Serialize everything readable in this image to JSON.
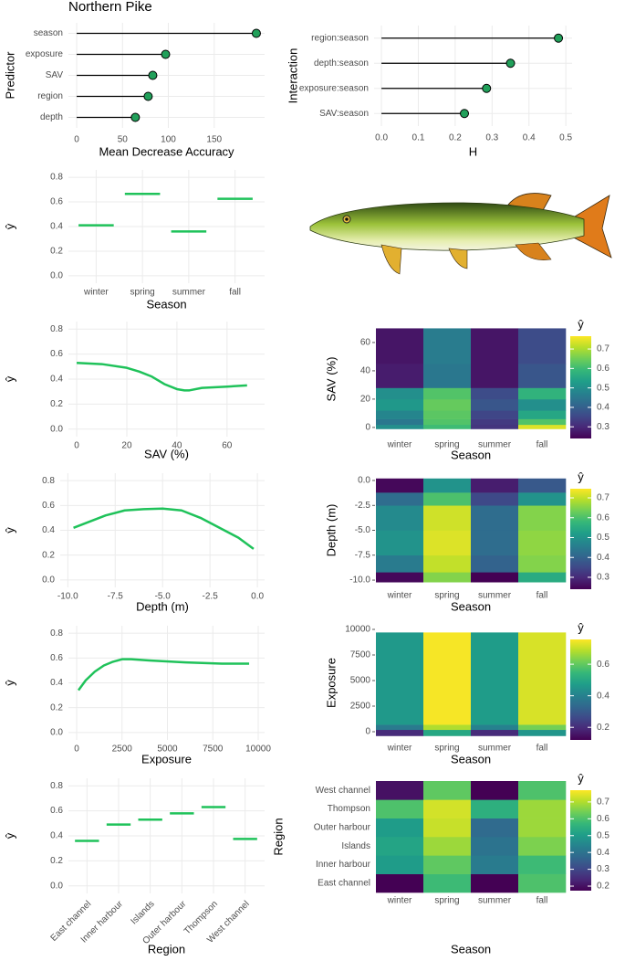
{
  "chart_data": [
    {
      "type": "lollipop",
      "title": "Northern Pike",
      "ylabel": "Predictor",
      "xlabel": "Mean Decrease Accuracy",
      "categories": [
        "season",
        "exposure",
        "SAV",
        "region",
        "depth"
      ],
      "values": [
        196,
        97,
        83,
        78,
        64
      ],
      "color": "#21a05a",
      "xlim": [
        -9,
        205
      ],
      "xticks": [
        0,
        50,
        100,
        150
      ]
    },
    {
      "type": "lollipop",
      "ylabel": "Interaction",
      "xlabel": "H",
      "categories": [
        "region:season",
        "depth:season",
        "exposure:season",
        "SAV:season"
      ],
      "values": [
        0.48,
        0.35,
        0.285,
        0.225
      ],
      "color": "#21a05a",
      "xlim": [
        -0.02,
        0.517
      ],
      "xticks": [
        {
          "value": 0,
          "label": "0.0"
        },
        0.1,
        0.2,
        0.3,
        0.4,
        0.5
      ]
    },
    {
      "type": "segment",
      "ylabel": "ŷ",
      "xlabel": "Season",
      "categories": [
        "winter",
        "spring",
        "summer",
        "fall"
      ],
      "values": [
        0.41,
        0.665,
        0.36,
        0.625
      ],
      "color": "#1fc25a",
      "ylim": [
        -0.06,
        0.86
      ],
      "yticks": [
        {
          "value": 0,
          "label": "0.0"
        },
        0.2,
        0.4,
        0.6,
        0.8
      ]
    },
    {
      "type": "line",
      "ylabel": "ŷ",
      "xlabel": "SAV (%)",
      "x": [
        0,
        10,
        20,
        25,
        30,
        35,
        40,
        43,
        45,
        50,
        60,
        68
      ],
      "values": [
        0.53,
        0.52,
        0.49,
        0.46,
        0.42,
        0.36,
        0.32,
        0.31,
        0.31,
        0.33,
        0.34,
        0.35
      ],
      "color": "#1fc25a",
      "xlim": [
        -3.3,
        75
      ],
      "xticks": [
        0,
        20,
        40,
        60
      ],
      "ylim": [
        -0.06,
        0.86
      ],
      "yticks": [
        {
          "value": 0,
          "label": "0.0"
        },
        0.2,
        0.4,
        0.6,
        0.8
      ]
    },
    {
      "type": "heatmap",
      "ylabel": "SAV (%)",
      "xlabel": "Season",
      "categories": [
        "winter",
        "spring",
        "summer",
        "fall"
      ],
      "ybins": [
        -1,
        2,
        6,
        12,
        20,
        28,
        45,
        70
      ],
      "values": [
        [
          0.5,
          0.6,
          0.32,
          0.74
        ],
        [
          0.45,
          0.62,
          0.33,
          0.62
        ],
        [
          0.48,
          0.63,
          0.35,
          0.55
        ],
        [
          0.52,
          0.64,
          0.38,
          0.5
        ],
        [
          0.5,
          0.62,
          0.36,
          0.58
        ],
        [
          0.28,
          0.45,
          0.27,
          0.38
        ],
        [
          0.27,
          0.46,
          0.27,
          0.36
        ]
      ],
      "ylim": [
        -6.5,
        74.8
      ],
      "yticks": [
        0,
        20,
        40,
        60
      ],
      "clim": [
        0.24,
        0.766
      ],
      "colorbar_title": "ŷ",
      "colorbar_ticks": [
        0.3,
        0.4,
        0.5,
        0.6,
        0.7
      ]
    },
    {
      "type": "line",
      "ylabel": "ŷ",
      "xlabel": "Depth (m)",
      "x": [
        -9.7,
        -8,
        -7,
        -6,
        -5,
        -4,
        -3,
        -2,
        -1,
        -0.2
      ],
      "values": [
        0.42,
        0.52,
        0.56,
        0.57,
        0.575,
        0.56,
        0.5,
        0.42,
        0.34,
        0.25
      ],
      "color": "#1fc25a",
      "xlim": [
        -10.4,
        0.38
      ],
      "xticks": [
        {
          "value": -10,
          "label": "-10.0"
        },
        -7.5,
        {
          "value": -5,
          "label": "-5.0"
        },
        -2.5,
        {
          "value": 0,
          "label": "0.0"
        }
      ],
      "ylim": [
        -0.06,
        0.86
      ],
      "yticks": [
        {
          "value": 0,
          "label": "0.0"
        },
        0.2,
        0.4,
        0.6,
        0.8
      ]
    },
    {
      "type": "heatmap",
      "ylabel": "Depth (m)",
      "xlabel": "Season",
      "categories": [
        "winter",
        "spring",
        "summer",
        "fall"
      ],
      "ybins": [
        -10.2,
        -9.2,
        -7.5,
        -5,
        -2.5,
        -1.2,
        0.2
      ],
      "values": [
        [
          0.25,
          0.65,
          0.22,
          0.55
        ],
        [
          0.45,
          0.7,
          0.4,
          0.65
        ],
        [
          0.5,
          0.72,
          0.42,
          0.66
        ],
        [
          0.48,
          0.71,
          0.42,
          0.65
        ],
        [
          0.42,
          0.6,
          0.35,
          0.5
        ],
        [
          0.25,
          0.5,
          0.28,
          0.38
        ]
      ],
      "ylim": [
        -10.73,
        0.73
      ],
      "yticks": [
        {
          "value": 0,
          "label": "0.0"
        },
        -2.5,
        {
          "value": -5,
          "label": "-5.0"
        },
        -7.5,
        {
          "value": -10,
          "label": "-10.0"
        }
      ],
      "clim": [
        0.24,
        0.746
      ],
      "colorbar_title": "ŷ",
      "colorbar_ticks": [
        0.3,
        0.4,
        0.5,
        0.6,
        0.7
      ]
    },
    {
      "type": "line",
      "ylabel": "ŷ",
      "xlabel": "Exposure",
      "x": [
        100,
        500,
        1000,
        1500,
        2000,
        2500,
        3000,
        4000,
        6000,
        8000,
        9500
      ],
      "values": [
        0.34,
        0.42,
        0.49,
        0.54,
        0.57,
        0.59,
        0.59,
        0.58,
        0.565,
        0.555,
        0.555
      ],
      "color": "#1fc25a",
      "xlim": [
        -452,
        10352
      ],
      "xticks": [
        0,
        2500,
        5000,
        7500,
        10000
      ],
      "ylim": [
        -0.06,
        0.86
      ],
      "yticks": [
        {
          "value": 0,
          "label": "0.0"
        },
        0.2,
        0.4,
        0.6,
        0.8
      ]
    },
    {
      "type": "heatmap",
      "ylabel": "Exposure",
      "xlabel": "Season",
      "categories": [
        "winter",
        "spring",
        "summer",
        "fall"
      ],
      "ybins": [
        -400,
        200,
        700,
        9700
      ],
      "values": [
        [
          0.2,
          0.5,
          0.2,
          0.45
        ],
        [
          0.38,
          0.68,
          0.4,
          0.62
        ],
        [
          0.46,
          0.75,
          0.47,
          0.72
        ]
      ],
      "ylim": [
        -804,
        10357
      ],
      "yticks": [
        0,
        2500,
        5000,
        7500,
        10000
      ],
      "clim": [
        0.12,
        0.757
      ],
      "colorbar_title": "ŷ",
      "colorbar_ticks": [
        0.2,
        0.4,
        0.6
      ]
    },
    {
      "type": "segment",
      "ylabel": "ŷ",
      "xlabel": "Region",
      "categories": [
        "East channel",
        "Inner harbour",
        "Islands",
        "Outer harbour",
        "Thompson",
        "West channel"
      ],
      "values": [
        0.36,
        0.49,
        0.53,
        0.58,
        0.63,
        0.375
      ],
      "color": "#1fc25a",
      "ylim": [
        -0.06,
        0.86
      ],
      "yticks": [
        {
          "value": 0,
          "label": "0.0"
        },
        0.2,
        0.4,
        0.6,
        0.8
      ]
    },
    {
      "type": "heatmap",
      "ylabel": "Region",
      "xlabel": "Season",
      "categories": [
        "winter",
        "spring",
        "summer",
        "fall"
      ],
      "rows": [
        "East channel",
        "Inner harbour",
        "Islands",
        "Outer harbour",
        "Thompson",
        "West channel"
      ],
      "values": [
        [
          0.15,
          0.58,
          0.15,
          0.6
        ],
        [
          0.5,
          0.62,
          0.42,
          0.58
        ],
        [
          0.52,
          0.68,
          0.4,
          0.65
        ],
        [
          0.5,
          0.72,
          0.38,
          0.68
        ],
        [
          0.6,
          0.73,
          0.55,
          0.68
        ],
        [
          0.2,
          0.62,
          0.15,
          0.6
        ]
      ],
      "clim": [
        0.173,
        0.77
      ],
      "colorbar_title": "ŷ",
      "colorbar_ticks": [
        0.2,
        0.3,
        0.4,
        0.5,
        0.6,
        0.7
      ]
    }
  ]
}
